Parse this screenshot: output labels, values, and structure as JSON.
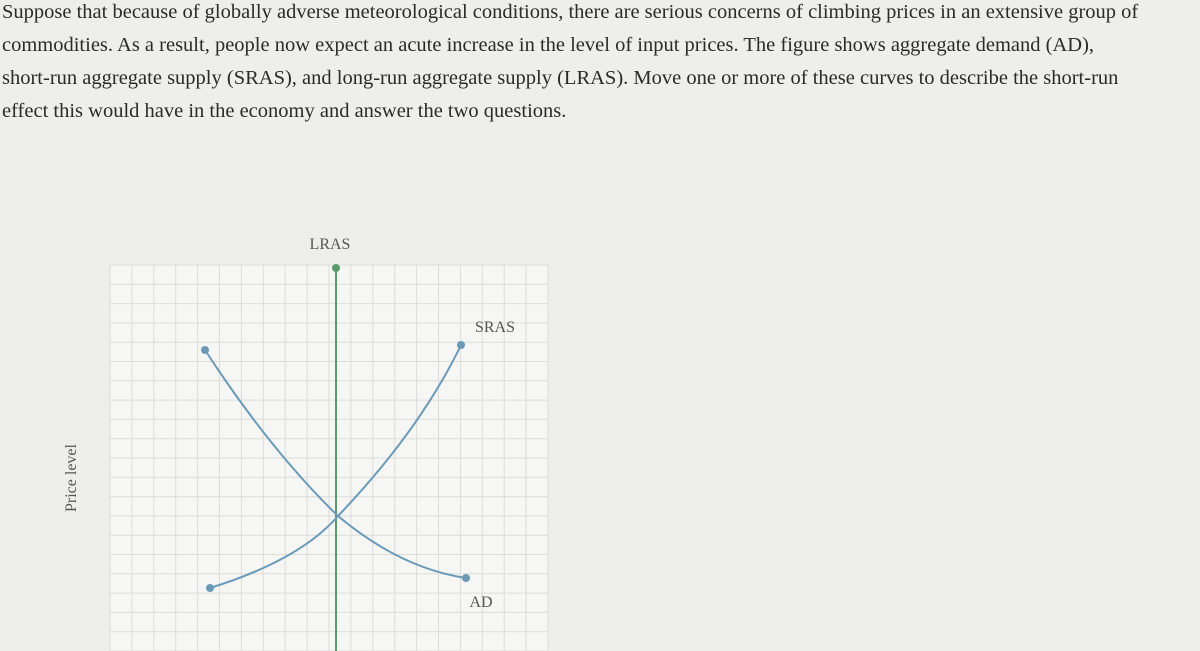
{
  "question": {
    "text": "Suppose that because of globally adverse meteorological conditions, there are serious concerns of climbing prices in an extensive group of commodities. As a result, people now expect an acute increase in the level of input prices. The figure shows aggregate demand (AD), short-run aggregate supply (SRAS), and long-run aggregate supply (LRAS). Move one or more of these curves to describe the short-run effect this would have in the economy and answer the two questions."
  },
  "graph": {
    "y_axis_label": "Price level",
    "curves": {
      "lras": "LRAS",
      "sras": "SRAS",
      "ad": "AD"
    }
  }
}
